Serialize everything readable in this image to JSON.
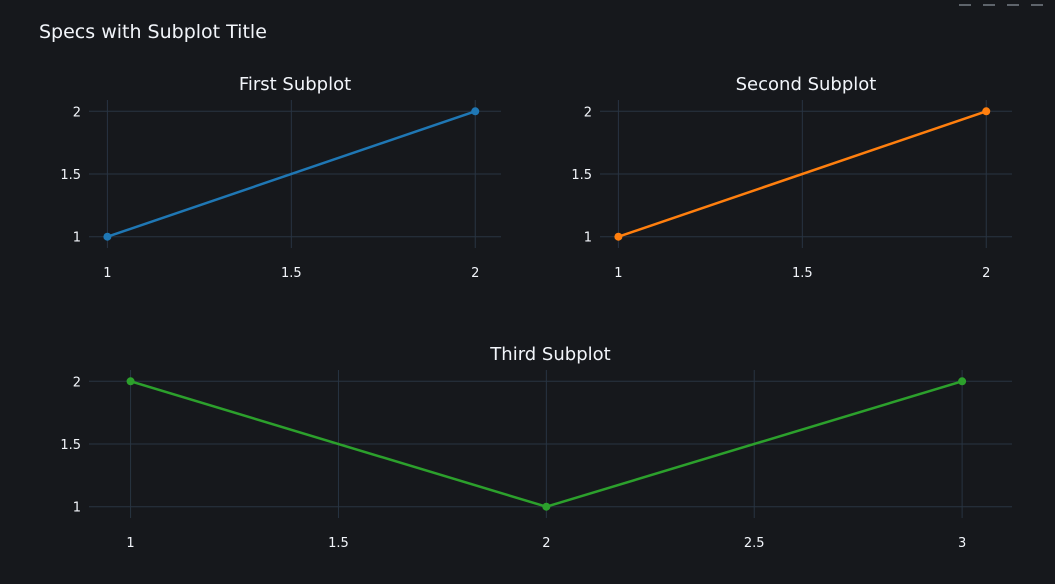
{
  "chart_data": {
    "title": "Specs with Subplot Title",
    "subplots": [
      {
        "type": "line",
        "title": "First Subplot",
        "x": [
          1,
          2
        ],
        "y": [
          1,
          2
        ],
        "color": "#1f77b4",
        "xlim": [
          0.95,
          2.07
        ],
        "ylim": [
          0.91,
          2.09
        ],
        "x_ticks": [
          "1",
          "1.5",
          "2"
        ],
        "y_ticks": [
          "1",
          "1.5",
          "2"
        ],
        "grid": true
      },
      {
        "type": "line",
        "title": "Second Subplot",
        "x": [
          1,
          2
        ],
        "y": [
          1,
          2
        ],
        "color": "#ff7f0e",
        "xlim": [
          0.95,
          2.07
        ],
        "ylim": [
          0.91,
          2.09
        ],
        "x_ticks": [
          "1",
          "1.5",
          "2"
        ],
        "y_ticks": [
          "1",
          "1.5",
          "2"
        ],
        "grid": true
      },
      {
        "type": "line",
        "title": "Third Subplot",
        "x": [
          1,
          2,
          3
        ],
        "y": [
          2,
          1,
          2
        ],
        "color": "#2ca02c",
        "xlim": [
          0.9,
          3.12
        ],
        "ylim": [
          0.91,
          2.09
        ],
        "x_ticks": [
          "1",
          "1.5",
          "2",
          "2.5",
          "3"
        ],
        "y_ticks": [
          "1",
          "1.5",
          "2"
        ],
        "grid": true
      }
    ],
    "background": "#16181c",
    "grid_color": "#283442"
  }
}
